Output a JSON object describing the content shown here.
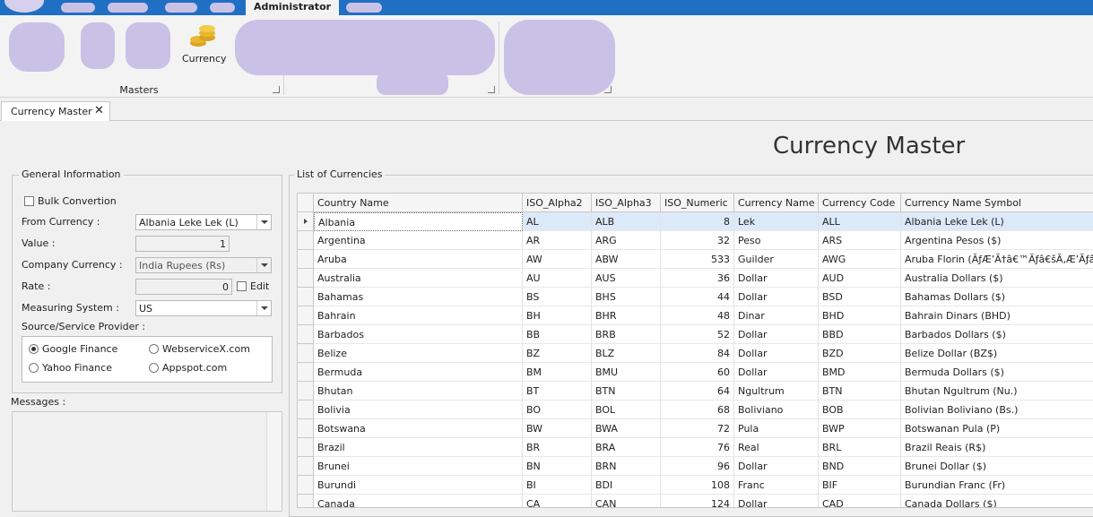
{
  "ribbon": {
    "active_tab": "Administrator",
    "currency_button": "Currency",
    "group_label": "Masters"
  },
  "document_tab": "Currency Master",
  "heading": "Currency Master",
  "general_information": {
    "legend": "General Information",
    "bulk_conversion": "Bulk Convertion",
    "from_currency_label": "From Currency :",
    "from_currency_value": "Albania Leke Lek (L)",
    "value_label": "Value :",
    "value": 1,
    "company_currency_label": "Company Currency :",
    "company_currency_value": "India Rupees (Rs)",
    "rate_label": "Rate :",
    "rate": 0,
    "edit": "Edit",
    "measuring_system_label": "Measuring System :",
    "measuring_system_value": "US",
    "provider_label": "Source/Service Provider :",
    "providers": [
      "Google Finance",
      "WebserviceX.com",
      "Yahoo Finance",
      "Appspot.com"
    ]
  },
  "messages_label": "Messages :",
  "table": {
    "legend": "List of Currencies",
    "columns": [
      "Country Name",
      "ISO_Alpha2",
      "ISO_Alpha3",
      "ISO_Numeric",
      "Currency Name",
      "Currency Code",
      "Currency Name Symbol"
    ],
    "rows": [
      [
        "Albania",
        "AL",
        "ALB",
        8,
        "Lek",
        "ALL",
        "Albania Leke Lek (L)"
      ],
      [
        "Argentina",
        "AR",
        "ARG",
        32,
        "Peso",
        "ARS",
        "Argentina Pesos ($)"
      ],
      [
        "Aruba",
        "AW",
        "ABW",
        533,
        "Guilder",
        "AWG",
        "Aruba Florin (ÃƒÆ’Ã†â€™Ãƒâ€šÃ‚Æ’Ãƒâ€šÃ‚Â¬Ãƒ"
      ],
      [
        "Australia",
        "AU",
        "AUS",
        36,
        "Dollar",
        "AUD",
        "Australia Dollars ($)"
      ],
      [
        "Bahamas",
        "BS",
        "BHS",
        44,
        "Dollar",
        "BSD",
        "Bahamas Dollars  ($)"
      ],
      [
        "Bahrain",
        "BH",
        "BHR",
        48,
        "Dinar",
        "BHD",
        "Bahrain Dinars (BHD)"
      ],
      [
        "Barbados",
        "BB",
        "BRB",
        52,
        "Dollar",
        "BBD",
        "Barbados Dollars  ($)"
      ],
      [
        "Belize",
        "BZ",
        "BLZ",
        84,
        "Dollar",
        "BZD",
        "Belize Dollar (BZ$)"
      ],
      [
        "Bermuda",
        "BM",
        "BMU",
        60,
        "Dollar",
        "BMD",
        "Bermuda Dollars  ($)"
      ],
      [
        "Bhutan",
        "BT",
        "BTN",
        64,
        "Ngultrum",
        "BTN",
        "Bhutan Ngultrum (Nu.)"
      ],
      [
        "Bolivia",
        "BO",
        "BOL",
        68,
        "Boliviano",
        "BOB",
        "Bolivian Boliviano (Bs.)"
      ],
      [
        "Botswana",
        "BW",
        "BWA",
        72,
        "Pula",
        "BWP",
        "Botswanan Pula (P)"
      ],
      [
        "Brazil",
        "BR",
        "BRA",
        76,
        "Real",
        "BRL",
        "Brazil Reais (R$)"
      ],
      [
        "Brunei",
        "BN",
        "BRN",
        96,
        "Dollar",
        "BND",
        "Brunei Dollar  ($)"
      ],
      [
        "Burundi",
        "BI",
        "BDI",
        108,
        "Franc",
        "BIF",
        "Burundian Franc (Fr)"
      ],
      [
        "Canada",
        "CA",
        "CAN",
        124,
        "Dollar",
        "CAD",
        "Canada Dollars ($)"
      ]
    ]
  }
}
